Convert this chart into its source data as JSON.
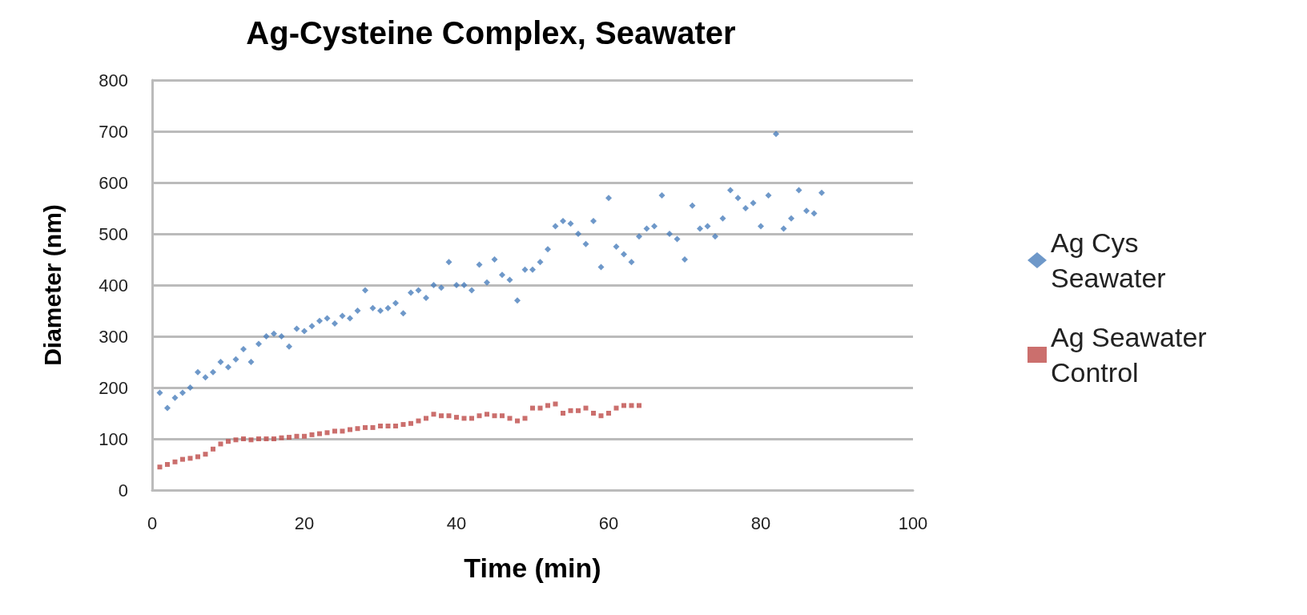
{
  "chart_data": {
    "type": "scatter",
    "title": "Ag-Cysteine Complex, Seawater",
    "xlabel": "Time (min)",
    "ylabel": "Diameter (nm)",
    "xlim": [
      0,
      100
    ],
    "xticks": [
      0,
      20,
      40,
      60,
      80,
      100
    ],
    "ylim": [
      0,
      800
    ],
    "yticks": [
      0,
      100,
      200,
      300,
      400,
      500,
      600,
      700,
      800
    ],
    "grid": "y",
    "legend": "right",
    "series": [
      {
        "name": "Ag Cys Seawater",
        "color": "#4a7ebb",
        "marker": "diamond",
        "x": [
          1,
          2,
          3,
          4,
          5,
          6,
          7,
          8,
          9,
          10,
          11,
          12,
          13,
          14,
          15,
          16,
          17,
          18,
          19,
          20,
          21,
          22,
          23,
          24,
          25,
          26,
          27,
          28,
          29,
          30,
          31,
          32,
          33,
          34,
          35,
          36,
          37,
          38,
          39,
          40,
          41,
          42,
          43,
          44,
          45,
          46,
          47,
          48,
          49,
          50,
          51,
          52,
          53,
          54,
          55,
          56,
          57,
          58,
          59,
          60,
          61,
          62,
          63,
          64,
          65,
          66,
          67,
          68,
          69,
          70,
          71,
          72,
          73,
          74,
          75,
          76,
          77,
          78,
          79,
          80,
          81,
          82,
          83,
          84,
          85,
          86,
          87,
          88
        ],
        "values": [
          190,
          160,
          180,
          190,
          200,
          230,
          220,
          230,
          250,
          240,
          255,
          275,
          250,
          285,
          300,
          305,
          300,
          280,
          315,
          310,
          320,
          330,
          335,
          325,
          340,
          335,
          350,
          390,
          355,
          350,
          355,
          365,
          345,
          385,
          390,
          375,
          400,
          395,
          445,
          400,
          400,
          390,
          440,
          405,
          450,
          420,
          410,
          370,
          430,
          430,
          445,
          470,
          515,
          525,
          520,
          500,
          480,
          525,
          435,
          570,
          475,
          460,
          445,
          495,
          510,
          515,
          575,
          500,
          490,
          450,
          555,
          510,
          515,
          495,
          530,
          585,
          570,
          550,
          560,
          515,
          575,
          695,
          510,
          530,
          585,
          545,
          540,
          580
        ]
      },
      {
        "name": "Ag Seawater Control",
        "color": "#be4b48",
        "marker": "square",
        "x": [
          1,
          2,
          3,
          4,
          5,
          6,
          7,
          8,
          9,
          10,
          11,
          12,
          13,
          14,
          15,
          16,
          17,
          18,
          19,
          20,
          21,
          22,
          23,
          24,
          25,
          26,
          27,
          28,
          29,
          30,
          31,
          32,
          33,
          34,
          35,
          36,
          37,
          38,
          39,
          40,
          41,
          42,
          43,
          44,
          45,
          46,
          47,
          48,
          49,
          50,
          51,
          52,
          53,
          54,
          55,
          56,
          57,
          58,
          59,
          60,
          61,
          62,
          63,
          64
        ],
        "values": [
          45,
          50,
          55,
          60,
          62,
          65,
          70,
          80,
          90,
          95,
          98,
          100,
          98,
          100,
          100,
          100,
          102,
          103,
          105,
          105,
          108,
          110,
          112,
          115,
          115,
          118,
          120,
          122,
          122,
          125,
          125,
          125,
          128,
          130,
          135,
          140,
          148,
          145,
          145,
          142,
          140,
          140,
          145,
          148,
          145,
          145,
          140,
          135,
          140,
          160,
          160,
          165,
          168,
          150,
          155,
          155,
          160,
          150,
          145,
          150,
          160,
          165,
          165,
          165
        ]
      }
    ]
  }
}
